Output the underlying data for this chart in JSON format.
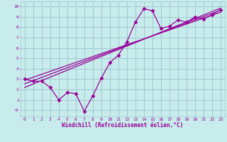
{
  "title": "",
  "xlabel": "Windchill (Refroidissement éolien,°C)",
  "bg_color": "#c8ecec",
  "grid_color": "#a0c8d0",
  "line_color": "#990099",
  "xlim": [
    -0.5,
    23.5
  ],
  "ylim": [
    -0.6,
    10.5
  ],
  "xticks": [
    0,
    1,
    2,
    3,
    4,
    5,
    6,
    7,
    8,
    9,
    10,
    11,
    12,
    13,
    14,
    15,
    16,
    17,
    18,
    19,
    20,
    21,
    22,
    23
  ],
  "yticks": [
    0,
    1,
    2,
    3,
    4,
    5,
    6,
    7,
    8,
    9,
    10
  ],
  "ytick_labels": [
    "-0",
    "1",
    "2",
    "3",
    "4",
    "5",
    "6",
    "7",
    "8",
    "9",
    "10"
  ],
  "data_x": [
    0,
    1,
    2,
    3,
    4,
    5,
    6,
    7,
    8,
    9,
    10,
    11,
    12,
    13,
    14,
    15,
    16,
    17,
    18,
    19,
    20,
    21,
    22,
    23
  ],
  "data_y": [
    3.0,
    2.8,
    2.8,
    2.2,
    1.0,
    1.7,
    1.6,
    -0.1,
    1.4,
    3.1,
    4.6,
    5.3,
    6.6,
    8.5,
    9.8,
    9.6,
    7.9,
    8.1,
    8.7,
    8.5,
    9.0,
    8.8,
    9.2,
    9.7
  ],
  "trend1_x": [
    0,
    23
  ],
  "trend1_y": [
    2.9,
    9.45
  ],
  "trend2_x": [
    0,
    23
  ],
  "trend2_y": [
    2.2,
    9.85
  ],
  "trend3_x": [
    0,
    23
  ],
  "trend3_y": [
    2.55,
    9.65
  ]
}
